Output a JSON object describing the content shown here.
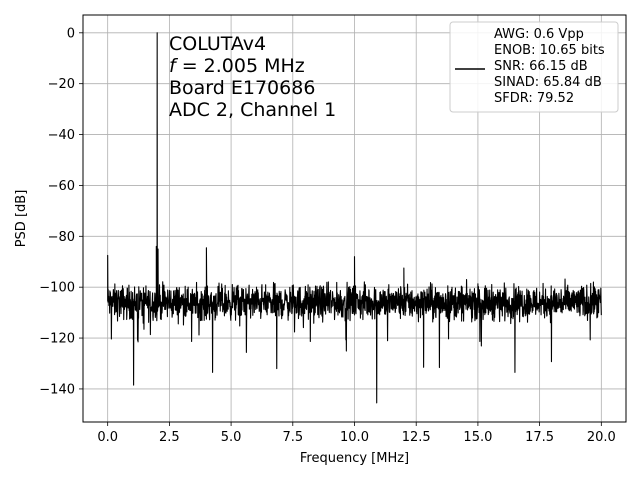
{
  "chart_data": {
    "type": "line",
    "xlabel": "Frequency [MHz]",
    "ylabel": "PSD [dB]",
    "xlim": [
      -1.0,
      21.0
    ],
    "ylim": [
      -153,
      7
    ],
    "xticks": [
      0.0,
      2.5,
      5.0,
      7.5,
      10.0,
      12.5,
      15.0,
      17.5,
      20.0
    ],
    "xtick_labels": [
      "0.0",
      "2.5",
      "5.0",
      "7.5",
      "10.0",
      "12.5",
      "15.0",
      "17.5",
      "20.0"
    ],
    "yticks": [
      0,
      -20,
      -40,
      -60,
      -80,
      -100,
      -120,
      -140
    ],
    "ytick_labels": [
      "0",
      "−20",
      "−40",
      "−60",
      "−80",
      "−100",
      "−120",
      "−140"
    ],
    "grid": true,
    "annotation": {
      "lines": [
        "COLUTAv4",
        "= 2.005 MHz",
        "Board E170686",
        "ADC 2, Channel 1"
      ],
      "f_symbol": "f"
    },
    "legend": {
      "placement": "top-right",
      "entries": [
        "AWG: 0.6 Vpp",
        "ENOB: 10.65 bits",
        "SNR: 66.15 dB",
        "SINAD: 65.84 dB",
        "SFDR: 79.52"
      ]
    },
    "series": [
      {
        "color": "#000000",
        "noise_floor_db": -106,
        "x_range": [
          0.0,
          20.0
        ],
        "peaks": [
          {
            "x": 0.0,
            "y": -87.5
          },
          {
            "x": 1.97,
            "y": -84
          },
          {
            "x": 2.005,
            "y": 0
          },
          {
            "x": 2.04,
            "y": -85
          },
          {
            "x": 4.0,
            "y": -84.5
          },
          {
            "x": 10.0,
            "y": -88
          },
          {
            "x": 12.0,
            "y": -92.5
          }
        ],
        "dips": [
          {
            "x": 1.05,
            "y": -138.5
          },
          {
            "x": 4.25,
            "y": -133.5
          },
          {
            "x": 6.85,
            "y": -132
          },
          {
            "x": 10.9,
            "y": -145.5
          },
          {
            "x": 12.8,
            "y": -131.5
          },
          {
            "x": 16.5,
            "y": -133.5
          },
          {
            "x": 20.0,
            "y": -111
          }
        ]
      }
    ]
  }
}
